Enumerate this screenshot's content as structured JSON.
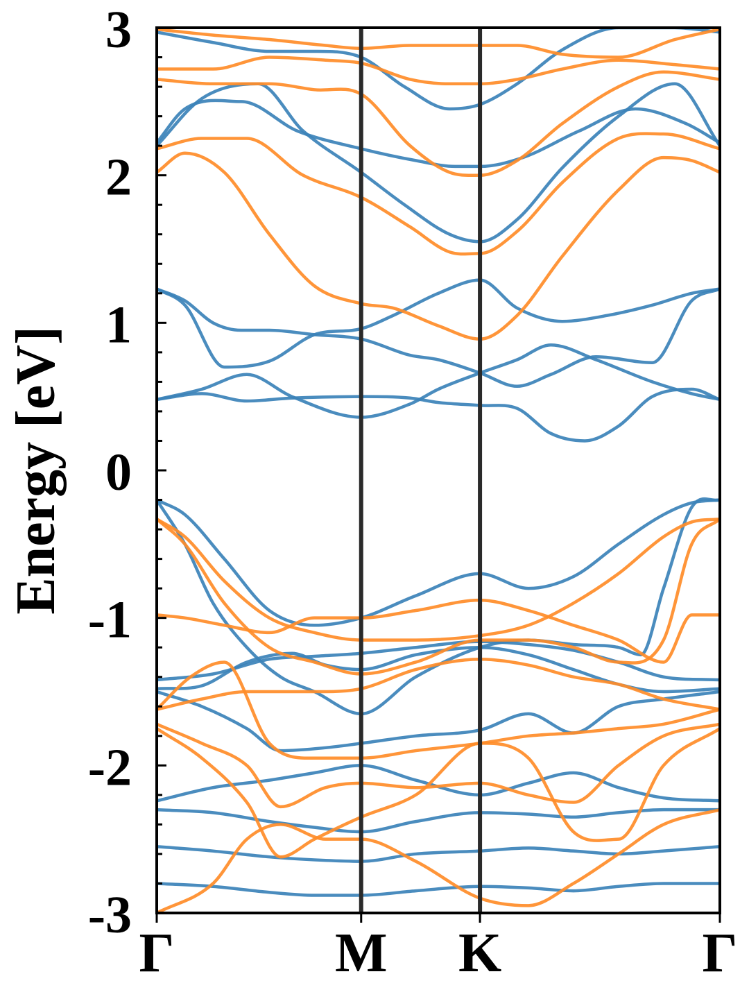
{
  "chart_data": {
    "type": "line",
    "title": "",
    "xlabel": "",
    "ylabel": "Energy [eV]",
    "ylim": [
      -3,
      3
    ],
    "y_ticks": [
      3,
      2,
      1,
      0,
      -1,
      -2,
      -3
    ],
    "y_tick_labels": [
      "3",
      "2",
      "1",
      "0",
      "-1",
      "-2",
      "-3"
    ],
    "y_minor_step": 0.2,
    "x_ticks": [
      {
        "label": "Γ",
        "pos": 0
      },
      {
        "label": "M",
        "pos": 0.363
      },
      {
        "label": "K",
        "pos": 0.574
      },
      {
        "label": "Γ",
        "pos": 1
      }
    ],
    "x_range": [
      0,
      1
    ],
    "grid": false,
    "legend": "none",
    "colors": {
      "blue": "#3b82b9",
      "orange": "#ff8c28",
      "kline": "#2a2a2a"
    },
    "series": [
      {
        "color": "blue",
        "x": [
          0,
          0.05,
          0.12,
          0.2,
          0.28,
          0.363,
          0.42,
          0.5,
          0.574,
          0.64,
          0.72,
          0.8,
          0.88,
          0.95,
          1
        ],
        "values": [
          1.23,
          1.12,
          0.7,
          0.74,
          0.92,
          0.96,
          1.05,
          1.2,
          1.29,
          1.1,
          1.01,
          1.05,
          1.12,
          1.2,
          1.23
        ]
      },
      {
        "color": "blue",
        "x": [
          0,
          0.05,
          0.1,
          0.15,
          0.2,
          0.28,
          0.363,
          0.45,
          0.5,
          0.574,
          0.64,
          0.7,
          0.78,
          0.88,
          0.95,
          1
        ],
        "values": [
          1.23,
          1.15,
          1.0,
          0.95,
          0.95,
          0.92,
          0.89,
          0.78,
          0.75,
          0.66,
          0.57,
          0.65,
          0.77,
          0.73,
          1.15,
          1.23
        ]
      },
      {
        "color": "blue",
        "x": [
          0,
          0.08,
          0.16,
          0.24,
          0.363,
          0.45,
          0.5,
          0.574,
          0.64,
          0.7,
          0.78,
          0.88,
          0.95,
          1
        ],
        "values": [
          0.48,
          0.55,
          0.65,
          0.5,
          0.36,
          0.45,
          0.55,
          0.66,
          0.75,
          0.85,
          0.75,
          0.6,
          0.52,
          0.48
        ]
      },
      {
        "color": "blue",
        "x": [
          0,
          0.08,
          0.16,
          0.24,
          0.363,
          0.45,
          0.5,
          0.574,
          0.64,
          0.7,
          0.76,
          0.82,
          0.88,
          0.95,
          1
        ],
        "values": [
          0.48,
          0.52,
          0.47,
          0.49,
          0.5,
          0.49,
          0.46,
          0.44,
          0.42,
          0.25,
          0.2,
          0.3,
          0.5,
          0.55,
          0.48
        ]
      },
      {
        "color": "blue",
        "x": [
          0,
          0.05,
          0.15,
          0.25,
          0.363,
          0.46,
          0.53,
          0.574,
          0.65,
          0.75,
          0.85,
          0.94,
          1
        ],
        "values": [
          2.22,
          2.45,
          2.5,
          2.3,
          2.18,
          2.1,
          2.06,
          2.06,
          2.12,
          2.3,
          2.45,
          2.35,
          2.22
        ]
      },
      {
        "color": "blue",
        "x": [
          0,
          0.08,
          0.18,
          0.26,
          0.363,
          0.44,
          0.52,
          0.574,
          0.64,
          0.72,
          0.82,
          0.92,
          1
        ],
        "values": [
          2.2,
          2.52,
          2.62,
          2.3,
          2.02,
          1.8,
          1.6,
          1.55,
          1.7,
          2.05,
          2.4,
          2.62,
          2.2
        ]
      },
      {
        "color": "blue",
        "x": [
          0,
          0.1,
          0.2,
          0.28,
          0.363,
          0.44,
          0.52,
          0.574,
          0.64,
          0.72,
          0.82,
          0.92,
          1
        ],
        "values": [
          2.97,
          2.9,
          2.84,
          2.84,
          2.8,
          2.6,
          2.45,
          2.48,
          2.62,
          2.85,
          3.0,
          3.0,
          2.97
        ]
      },
      {
        "color": "orange",
        "x": [
          0,
          0.05,
          0.12,
          0.2,
          0.28,
          0.363,
          0.42,
          0.5,
          0.574,
          0.64,
          0.72,
          0.82,
          0.9,
          0.95,
          1
        ],
        "values": [
          2.02,
          2.15,
          2.02,
          1.6,
          1.25,
          1.13,
          1.1,
          0.98,
          0.89,
          1.05,
          1.45,
          1.9,
          2.12,
          2.1,
          2.02
        ]
      },
      {
        "color": "orange",
        "x": [
          0,
          0.08,
          0.16,
          0.26,
          0.363,
          0.45,
          0.52,
          0.574,
          0.64,
          0.72,
          0.82,
          0.9,
          1
        ],
        "values": [
          2.18,
          2.25,
          2.25,
          2.0,
          1.85,
          1.65,
          1.48,
          1.47,
          1.62,
          1.95,
          2.25,
          2.28,
          2.18
        ]
      },
      {
        "color": "orange",
        "x": [
          0,
          0.1,
          0.2,
          0.28,
          0.363,
          0.45,
          0.52,
          0.574,
          0.64,
          0.72,
          0.82,
          0.9,
          1
        ],
        "values": [
          2.65,
          2.62,
          2.62,
          2.58,
          2.55,
          2.2,
          2.02,
          2.0,
          2.1,
          2.35,
          2.6,
          2.7,
          2.65
        ]
      },
      {
        "color": "orange",
        "x": [
          0,
          0.1,
          0.2,
          0.3,
          0.363,
          0.45,
          0.52,
          0.574,
          0.64,
          0.72,
          0.82,
          0.92,
          1
        ],
        "values": [
          2.72,
          2.72,
          2.8,
          2.78,
          2.76,
          2.65,
          2.62,
          2.62,
          2.65,
          2.72,
          2.78,
          2.75,
          2.72
        ]
      },
      {
        "color": "orange",
        "x": [
          0,
          0.1,
          0.2,
          0.3,
          0.363,
          0.45,
          0.52,
          0.574,
          0.64,
          0.72,
          0.82,
          0.92,
          1
        ],
        "values": [
          2.99,
          2.95,
          2.92,
          2.88,
          2.86,
          2.88,
          2.88,
          2.88,
          2.88,
          2.82,
          2.8,
          2.92,
          2.99
        ]
      },
      {
        "color": "blue",
        "x": [
          0,
          0.05,
          0.12,
          0.2,
          0.28,
          0.363,
          0.46,
          0.574,
          0.66,
          0.74,
          0.82,
          0.9,
          0.95,
          1
        ],
        "values": [
          -0.2,
          -0.3,
          -0.6,
          -0.95,
          -1.05,
          -1.0,
          -0.85,
          -0.7,
          -0.8,
          -0.72,
          -0.5,
          -0.3,
          -0.22,
          -0.2
        ]
      },
      {
        "color": "blue",
        "x": [
          0,
          0.05,
          0.1,
          0.16,
          0.22,
          0.28,
          0.363,
          0.46,
          0.574,
          0.66,
          0.74,
          0.82,
          0.86,
          0.9,
          0.95,
          1
        ],
        "values": [
          -0.2,
          -0.5,
          -0.9,
          -1.2,
          -1.4,
          -1.5,
          -1.65,
          -1.4,
          -1.2,
          -1.15,
          -1.18,
          -1.2,
          -1.25,
          -0.8,
          -0.25,
          -0.2
        ]
      },
      {
        "color": "blue",
        "x": [
          0,
          0.1,
          0.2,
          0.28,
          0.363,
          0.46,
          0.574,
          0.66,
          0.74,
          0.82,
          0.9,
          1
        ],
        "values": [
          -1.42,
          -1.38,
          -1.28,
          -1.26,
          -1.24,
          -1.2,
          -1.16,
          -1.18,
          -1.22,
          -1.3,
          -1.4,
          -1.42
        ]
      },
      {
        "color": "blue",
        "x": [
          0,
          0.08,
          0.16,
          0.24,
          0.3,
          0.363,
          0.46,
          0.574,
          0.66,
          0.74,
          0.82,
          0.9,
          1
        ],
        "values": [
          -1.48,
          -1.46,
          -1.3,
          -1.24,
          -1.32,
          -1.35,
          -1.25,
          -1.2,
          -1.25,
          -1.35,
          -1.45,
          -1.5,
          -1.48
        ]
      },
      {
        "color": "blue",
        "x": [
          0,
          0.08,
          0.16,
          0.22,
          0.3,
          0.363,
          0.46,
          0.574,
          0.66,
          0.74,
          0.82,
          0.9,
          1
        ],
        "values": [
          -1.5,
          -1.6,
          -1.75,
          -1.9,
          -1.88,
          -1.85,
          -1.8,
          -1.76,
          -1.65,
          -1.78,
          -1.6,
          -1.55,
          -1.5
        ]
      },
      {
        "color": "blue",
        "x": [
          0,
          0.1,
          0.2,
          0.28,
          0.363,
          0.46,
          0.574,
          0.66,
          0.74,
          0.82,
          0.9,
          1
        ],
        "values": [
          -2.24,
          -2.15,
          -2.1,
          -2.05,
          -2.0,
          -2.1,
          -2.2,
          -2.12,
          -2.05,
          -2.15,
          -2.22,
          -2.24
        ]
      },
      {
        "color": "blue",
        "x": [
          0,
          0.1,
          0.2,
          0.28,
          0.363,
          0.46,
          0.574,
          0.66,
          0.74,
          0.82,
          0.9,
          1
        ],
        "values": [
          -2.3,
          -2.32,
          -2.38,
          -2.42,
          -2.45,
          -2.38,
          -2.32,
          -2.33,
          -2.35,
          -2.32,
          -2.3,
          -2.3
        ]
      },
      {
        "color": "blue",
        "x": [
          0,
          0.1,
          0.2,
          0.28,
          0.363,
          0.46,
          0.574,
          0.66,
          0.74,
          0.82,
          0.9,
          1
        ],
        "values": [
          -2.55,
          -2.58,
          -2.62,
          -2.64,
          -2.65,
          -2.6,
          -2.58,
          -2.56,
          -2.58,
          -2.6,
          -2.58,
          -2.55
        ]
      },
      {
        "color": "blue",
        "x": [
          0,
          0.1,
          0.2,
          0.28,
          0.363,
          0.46,
          0.574,
          0.66,
          0.74,
          0.82,
          0.9,
          1
        ],
        "values": [
          -2.8,
          -2.82,
          -2.86,
          -2.88,
          -2.88,
          -2.85,
          -2.82,
          -2.83,
          -2.85,
          -2.82,
          -2.8,
          -2.8
        ]
      },
      {
        "color": "orange",
        "x": [
          0,
          0.05,
          0.12,
          0.2,
          0.28,
          0.363,
          0.46,
          0.574,
          0.66,
          0.74,
          0.82,
          0.9,
          0.95,
          1
        ],
        "values": [
          -0.33,
          -0.45,
          -0.75,
          -1.0,
          -1.1,
          -1.15,
          -1.15,
          -1.12,
          -1.05,
          -0.9,
          -0.7,
          -0.45,
          -0.35,
          -0.33
        ]
      },
      {
        "color": "orange",
        "x": [
          0,
          0.05,
          0.12,
          0.2,
          0.28,
          0.363,
          0.46,
          0.574,
          0.66,
          0.74,
          0.82,
          0.9,
          0.95,
          1
        ],
        "values": [
          -0.98,
          -1.0,
          -1.05,
          -1.1,
          -1.0,
          -1.0,
          -0.95,
          -0.88,
          -0.95,
          -1.05,
          -1.15,
          -1.3,
          -0.98,
          -0.98
        ]
      },
      {
        "color": "orange",
        "x": [
          0,
          0.05,
          0.12,
          0.2,
          0.28,
          0.363,
          0.46,
          0.574,
          0.66,
          0.74,
          0.82,
          0.9,
          0.95,
          1
        ],
        "values": [
          -0.33,
          -0.5,
          -0.9,
          -1.2,
          -1.3,
          -1.38,
          -1.3,
          -1.15,
          -1.15,
          -1.2,
          -1.3,
          -1.15,
          -0.5,
          -0.33
        ]
      },
      {
        "color": "orange",
        "x": [
          0,
          0.08,
          0.16,
          0.24,
          0.3,
          0.363,
          0.46,
          0.574,
          0.66,
          0.74,
          0.82,
          0.9,
          1
        ],
        "values": [
          -1.62,
          -1.55,
          -1.5,
          -1.5,
          -1.5,
          -1.48,
          -1.35,
          -1.28,
          -1.32,
          -1.4,
          -1.45,
          -1.55,
          -1.62
        ]
      },
      {
        "color": "orange",
        "x": [
          0,
          0.06,
          0.12,
          0.2,
          0.28,
          0.363,
          0.46,
          0.574,
          0.66,
          0.74,
          0.82,
          0.9,
          1
        ],
        "values": [
          -1.62,
          -1.4,
          -1.3,
          -1.85,
          -1.95,
          -1.95,
          -1.9,
          -1.85,
          -1.8,
          -1.78,
          -1.75,
          -1.72,
          -1.62
        ]
      },
      {
        "color": "orange",
        "x": [
          0,
          0.08,
          0.16,
          0.22,
          0.3,
          0.363,
          0.46,
          0.574,
          0.66,
          0.74,
          0.82,
          0.9,
          1
        ],
        "values": [
          -1.72,
          -1.85,
          -2.0,
          -2.28,
          -2.15,
          -2.12,
          -2.15,
          -2.12,
          -2.2,
          -2.25,
          -2.0,
          -1.8,
          -1.72
        ]
      },
      {
        "color": "orange",
        "x": [
          0,
          0.08,
          0.16,
          0.22,
          0.28,
          0.363,
          0.46,
          0.574,
          0.66,
          0.74,
          0.82,
          0.9,
          1
        ],
        "values": [
          -1.75,
          -1.95,
          -2.25,
          -2.62,
          -2.5,
          -2.35,
          -2.2,
          -1.85,
          -1.95,
          -2.45,
          -2.5,
          -2.0,
          -1.75
        ]
      },
      {
        "color": "orange",
        "x": [
          0,
          0.1,
          0.16,
          0.22,
          0.3,
          0.363,
          0.46,
          0.574,
          0.66,
          0.74,
          0.82,
          0.9,
          1
        ],
        "values": [
          -3.0,
          -2.8,
          -2.5,
          -2.4,
          -2.5,
          -2.5,
          -2.65,
          -2.9,
          -2.95,
          -2.8,
          -2.6,
          -2.4,
          -2.3
        ]
      }
    ]
  }
}
